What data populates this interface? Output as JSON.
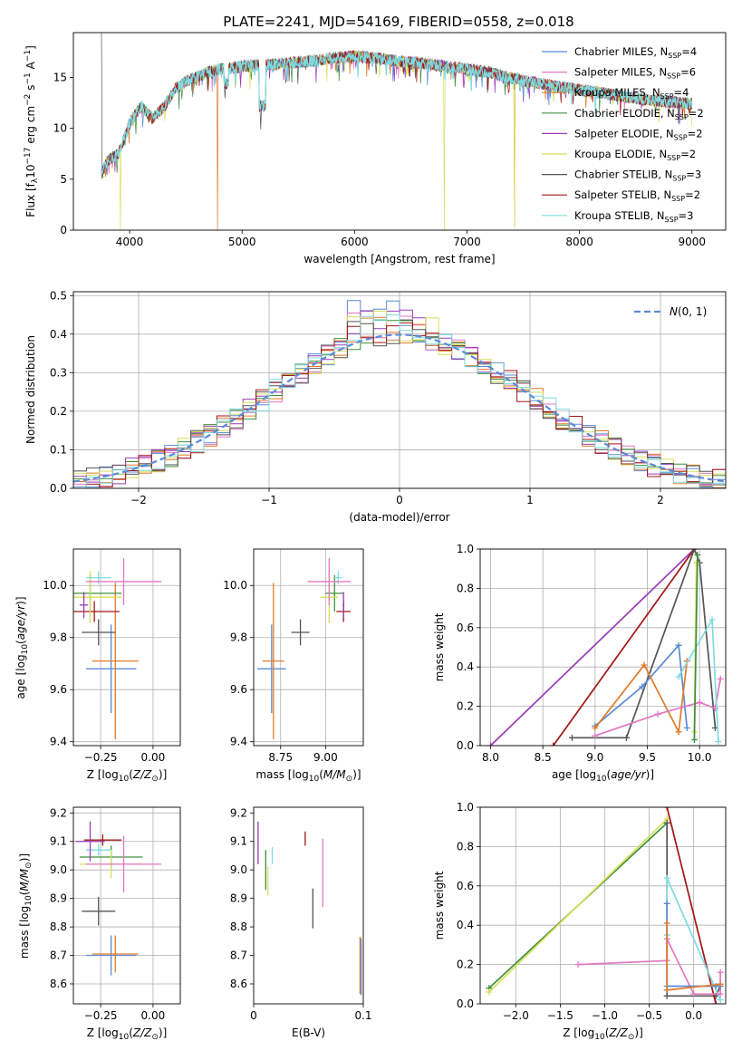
{
  "figure_title": "PLATE=2241, MJD=54169, FIBERID=0558, z=0.018",
  "colors": {
    "Chabrier MILES": "#5b8bd6",
    "Salpeter MILES": "#e377c2",
    "Kroupa MILES": "#e07b2a",
    "Chabrier ELODIE": "#3f8f3f",
    "Salpeter ELODIE": "#9a3bb5",
    "Kroupa ELODIE": "#d8df5a",
    "Chabrier STELIB": "#555555",
    "Salpeter STELIB": "#a31515",
    "Kroupa STELIB": "#7fdbe0"
  },
  "chart_data": [
    {
      "type": "line",
      "title": "PLATE=2241, MJD=54169, FIBERID=0558, z=0.018",
      "xlabel": "wavelength [Angstrom, rest frame]",
      "ylabel": "Flux [f",
      "xlim": [
        3500,
        9300
      ],
      "ylim": [
        0,
        19.4
      ],
      "xticks": [
        4000,
        5000,
        6000,
        7000,
        8000,
        9000
      ],
      "yticks": [
        0,
        5,
        10,
        15
      ],
      "grid": false,
      "legend_position": "top-right",
      "continuum": {
        "x": [
          3750,
          3800,
          3900,
          4000,
          4100,
          4200,
          4300,
          4400,
          4500,
          4600,
          4700,
          4800,
          5000,
          5200,
          5400,
          5600,
          5800,
          6000,
          6200,
          6400,
          6600,
          6800,
          7000,
          7200,
          7400,
          7600,
          7800,
          8000,
          8200,
          8400,
          8600,
          8800,
          9000
        ],
        "y": [
          5.5,
          6.8,
          7.5,
          10.5,
          12.2,
          11.0,
          12.0,
          13.8,
          14.6,
          15.1,
          15.5,
          15.8,
          16.1,
          16.2,
          16.4,
          16.6,
          16.9,
          17.1,
          16.9,
          16.6,
          16.4,
          16.1,
          15.8,
          15.5,
          14.9,
          14.5,
          14.1,
          13.8,
          13.5,
          13.1,
          12.8,
          12.6,
          12.4
        ]
      },
      "noise_amplitude": 0.6,
      "series": [
        {
          "name": "Chabrier MILES, N_SSP=4",
          "legend": "Chabrier MILES, N",
          "sub": "SSP",
          "n": "=4",
          "color": "#5b8bd6"
        },
        {
          "name": "Salpeter MILES, N_SSP=6",
          "legend": "Salpeter MILES, N",
          "sub": "SSP",
          "n": "=6",
          "color": "#e377c2"
        },
        {
          "name": "Kroupa MILES, N_SSP=4",
          "legend": "Kroupa MILES, N",
          "sub": "SSP",
          "n": "=4",
          "color": "#e07b2a",
          "dips": [
            [
              4780,
              0
            ],
            [
              7420,
              0.3
            ]
          ]
        },
        {
          "name": "Chabrier ELODIE, N_SSP=2",
          "legend": "Chabrier ELODIE, N",
          "sub": "SSP",
          "n": "=2",
          "color": "#3f8f3f"
        },
        {
          "name": "Salpeter ELODIE, N_SSP=2",
          "legend": "Salpeter ELODIE, N",
          "sub": "SSP",
          "n": "=2",
          "color": "#9a3bb5"
        },
        {
          "name": "Kroupa ELODIE, N_SSP=2",
          "legend": "Kroupa ELODIE, N",
          "sub": "SSP",
          "n": "=2",
          "color": "#d8df5a",
          "dips": [
            [
              3920,
              0
            ],
            [
              6800,
              0
            ],
            [
              7420,
              0.3
            ]
          ]
        },
        {
          "name": "Chabrier STELIB, N_SSP=3",
          "legend": "Chabrier STELIB, N",
          "sub": "SSP",
          "n": "=3",
          "color": "#555555",
          "spikes": [
            [
              3750,
              19.4
            ]
          ]
        },
        {
          "name": "Salpeter STELIB, N_SSP=2",
          "legend": "Salpeter STELIB, N",
          "sub": "SSP",
          "n": "=2",
          "color": "#a31515"
        },
        {
          "name": "Kroupa STELIB, N_SSP=3",
          "legend": "Kroupa STELIB, N",
          "sub": "SSP",
          "n": "=3",
          "color": "#7fdbe0"
        }
      ]
    },
    {
      "type": "line",
      "xlabel": "(data-model)/error",
      "ylabel": "Normed distribution",
      "xlim": [
        -2.5,
        2.5
      ],
      "ylim": [
        0,
        0.51
      ],
      "xticks": [
        -2,
        -1,
        0,
        1,
        2
      ],
      "yticks": [
        0.0,
        0.1,
        0.2,
        0.3,
        0.4,
        0.5
      ],
      "grid": true,
      "legend_position": "top-right",
      "reference_curve": {
        "name": "N(0, 1)",
        "color": "#5b8bd6"
      },
      "histogram_bin_width": 0.1,
      "histogram_scatter": 0.03,
      "histogram_peaks": [
        0.49,
        0.46,
        0.45,
        0.44,
        0.47,
        0.46,
        0.45,
        0.44,
        0.46
      ]
    },
    {
      "type": "scatter",
      "xlabel": "Z [log",
      "ylabel": "age  [log",
      "xlim": [
        -0.38,
        0.13
      ],
      "ylim": [
        9.385,
        10.14
      ],
      "xticks": [
        -0.25,
        0.0
      ],
      "yticks": [
        9.4,
        9.6,
        9.8,
        10.0
      ],
      "grid": true,
      "points": [
        {
          "series": "Chabrier MILES",
          "x": -0.2,
          "y": 9.68,
          "xerr": 0.12,
          "yerr": 0.17
        },
        {
          "series": "Kroupa MILES",
          "x": -0.18,
          "y": 9.71,
          "xerr": 0.11,
          "yerr": 0.3
        },
        {
          "series": "Chabrier STELIB",
          "x": -0.26,
          "y": 9.82,
          "xerr": 0.08,
          "yerr": 0.05
        },
        {
          "series": "Salpeter STELIB",
          "x": -0.28,
          "y": 9.9,
          "xerr": 0.12,
          "yerr": 0.04
        },
        {
          "series": "Chabrier ELODIE",
          "x": -0.3,
          "y": 9.97,
          "xerr": 0.15,
          "yerr": 0.07
        },
        {
          "series": "Kroupa ELODIE",
          "x": -0.3,
          "y": 9.955,
          "xerr": 0.15,
          "yerr": 0.1
        },
        {
          "series": "Kroupa STELIB",
          "x": -0.26,
          "y": 10.03,
          "xerr": 0.06,
          "yerr": 0.025
        },
        {
          "series": "Salpeter MILES",
          "x": -0.14,
          "y": 10.015,
          "xerr": 0.18,
          "yerr": 0.09
        },
        {
          "series": "Salpeter ELODIE",
          "x": -0.33,
          "y": 9.925,
          "xerr": 0.02,
          "yerr": 0.05
        }
      ]
    },
    {
      "type": "scatter",
      "xlabel": "mass [log",
      "ylabel": "",
      "xlim": [
        8.6,
        9.21
      ],
      "ylim": [
        9.385,
        10.14
      ],
      "xticks": [
        8.75,
        9.0
      ],
      "yticks": [
        9.4,
        9.6,
        9.8,
        10.0
      ],
      "grid": true,
      "points": [
        {
          "series": "Chabrier MILES",
          "x": 8.7,
          "y": 9.68,
          "xerr": 0.08,
          "yerr": 0.17
        },
        {
          "series": "Kroupa MILES",
          "x": 8.71,
          "y": 9.71,
          "xerr": 0.06,
          "yerr": 0.3
        },
        {
          "series": "Chabrier STELIB",
          "x": 8.86,
          "y": 9.82,
          "xerr": 0.05,
          "yerr": 0.05
        },
        {
          "series": "Salpeter STELIB",
          "x": 9.1,
          "y": 9.9,
          "xerr": 0.04,
          "yerr": 0.04
        },
        {
          "series": "Chabrier ELODIE",
          "x": 9.05,
          "y": 9.97,
          "xerr": 0.05,
          "yerr": 0.07
        },
        {
          "series": "Kroupa ELODIE",
          "x": 9.02,
          "y": 9.955,
          "xerr": 0.05,
          "yerr": 0.1
        },
        {
          "series": "Kroupa STELIB",
          "x": 9.07,
          "y": 10.03,
          "xerr": 0.02,
          "yerr": 0.025
        },
        {
          "series": "Salpeter MILES",
          "x": 9.02,
          "y": 10.015,
          "xerr": 0.12,
          "yerr": 0.09
        },
        {
          "series": "Salpeter ELODIE",
          "x": 9.1,
          "y": 9.925,
          "xerr": 0.005,
          "yerr": 0.05
        }
      ]
    },
    {
      "type": "line",
      "xlabel": "age  [log",
      "ylabel": "mass weight",
      "xlim": [
        7.9,
        10.25
      ],
      "ylim": [
        0,
        1.0
      ],
      "xticks": [
        8.0,
        8.5,
        9.0,
        9.5,
        10.0
      ],
      "yticks": [
        0.0,
        0.2,
        0.4,
        0.6,
        0.8,
        1.0
      ],
      "grid": true,
      "series": [
        {
          "name": "Salpeter ELODIE",
          "x": [
            8.0,
            9.95
          ],
          "y": [
            0.0,
            1.0
          ]
        },
        {
          "name": "Salpeter STELIB",
          "x": [
            8.6,
            9.95
          ],
          "y": [
            0.0,
            1.0
          ]
        },
        {
          "name": "Chabrier STELIB",
          "x": [
            8.78,
            9.3,
            9.95,
            10.0,
            10.15
          ],
          "y": [
            0.04,
            0.04,
            1.0,
            0.93,
            0.09
          ]
        },
        {
          "name": "Chabrier MILES",
          "x": [
            9.0,
            9.45,
            9.8,
            9.88
          ],
          "y": [
            0.1,
            0.3,
            0.51,
            0.09
          ]
        },
        {
          "name": "Kroupa MILES",
          "x": [
            9.0,
            9.47,
            9.8,
            9.88
          ],
          "y": [
            0.09,
            0.41,
            0.07,
            0.43
          ]
        },
        {
          "name": "Salpeter MILES",
          "x": [
            9.0,
            9.6,
            10.0,
            10.15,
            10.2
          ],
          "y": [
            0.05,
            0.16,
            0.22,
            0.19,
            0.34
          ]
        },
        {
          "name": "Kroupa STELIB",
          "x": [
            9.8,
            10.12,
            10.18
          ],
          "y": [
            0.35,
            0.64,
            0.02
          ]
        },
        {
          "name": "Kroupa ELODIE",
          "x": [
            9.95,
            9.97
          ],
          "y": [
            0.07,
            0.93
          ]
        },
        {
          "name": "Chabrier ELODIE",
          "x": [
            9.95,
            9.98
          ],
          "y": [
            0.03,
            0.97
          ]
        }
      ]
    },
    {
      "type": "scatter",
      "xlabel": "Z [log",
      "ylabel": "mass [log",
      "xlim": [
        -0.38,
        0.13
      ],
      "ylim": [
        8.53,
        9.22
      ],
      "xticks": [
        -0.25,
        0.0
      ],
      "yticks": [
        8.6,
        8.7,
        8.8,
        8.9,
        9.0,
        9.1,
        9.2
      ],
      "grid": true,
      "points": [
        {
          "series": "Chabrier MILES",
          "x": -0.2,
          "y": 8.7,
          "xerr": 0.12,
          "yerr": 0.07
        },
        {
          "series": "Kroupa MILES",
          "x": -0.18,
          "y": 8.705,
          "xerr": 0.11,
          "yerr": 0.065
        },
        {
          "series": "Chabrier STELIB",
          "x": -0.26,
          "y": 8.855,
          "xerr": 0.08,
          "yerr": 0.05
        },
        {
          "series": "Salpeter STELIB",
          "x": -0.24,
          "y": 9.105,
          "xerr": 0.09,
          "yerr": 0.02
        },
        {
          "series": "Chabrier ELODIE",
          "x": -0.2,
          "y": 9.045,
          "xerr": 0.15,
          "yerr": 0.04
        },
        {
          "series": "Kroupa ELODIE",
          "x": -0.2,
          "y": 9.02,
          "xerr": 0.15,
          "yerr": 0.05
        },
        {
          "series": "Kroupa STELIB",
          "x": -0.26,
          "y": 9.07,
          "xerr": 0.06,
          "yerr": 0.02
        },
        {
          "series": "Salpeter MILES",
          "x": -0.14,
          "y": 9.02,
          "xerr": 0.18,
          "yerr": 0.1
        },
        {
          "series": "Salpeter ELODIE",
          "x": -0.3,
          "y": 9.1,
          "xerr": 0.07,
          "yerr": 0.07
        }
      ]
    },
    {
      "type": "scatter",
      "xlabel": "E(B-V)",
      "ylabel": "",
      "xlim": [
        0,
        0.1
      ],
      "ylim": [
        8.53,
        9.22
      ],
      "xticks": [
        0.0,
        0.1
      ],
      "yticks": [
        8.6,
        8.7,
        8.8,
        8.9,
        9.0,
        9.1,
        9.2
      ],
      "grid": false,
      "points": [
        {
          "series": "Salpeter ELODIE",
          "x": 0.004,
          "y": 9.095,
          "yerr": 0.075
        },
        {
          "series": "Chabrier ELODIE",
          "x": 0.011,
          "y": 9.0,
          "yerr": 0.07
        },
        {
          "series": "Kroupa ELODIE",
          "x": 0.013,
          "y": 8.96,
          "yerr": 0.05
        },
        {
          "series": "Kroupa STELIB",
          "x": 0.017,
          "y": 9.05,
          "yerr": 0.03
        },
        {
          "series": "Salpeter STELIB",
          "x": 0.047,
          "y": 9.11,
          "yerr": 0.025
        },
        {
          "series": "Chabrier STELIB",
          "x": 0.054,
          "y": 8.865,
          "yerr": 0.07
        },
        {
          "series": "Salpeter MILES",
          "x": 0.063,
          "y": 8.99,
          "yerr": 0.12
        },
        {
          "series": "Kroupa MILES",
          "x": 0.097,
          "y": 8.665,
          "yerr": 0.1
        },
        {
          "series": "Chabrier MILES",
          "x": 0.098,
          "y": 8.66,
          "yerr": 0.1
        }
      ]
    },
    {
      "type": "line",
      "xlabel": "Z [log",
      "ylabel": "mass weight",
      "xlim": [
        -2.4,
        0.36
      ],
      "ylim": [
        0,
        1.0
      ],
      "xticks": [
        -2.0,
        -1.5,
        -1.0,
        -0.5,
        0.0
      ],
      "yticks": [
        0.0,
        0.2,
        0.4,
        0.6,
        0.8,
        1.0
      ],
      "grid": true,
      "series": [
        {
          "name": "Chabrier ELODIE",
          "x": [
            -2.3,
            -0.3
          ],
          "y": [
            0.08,
            0.92
          ]
        },
        {
          "name": "Kroupa ELODIE",
          "x": [
            -2.3,
            -0.3
          ],
          "y": [
            0.06,
            0.94
          ]
        },
        {
          "name": "Chabrier STELIB",
          "x": [
            -0.3,
            -0.3,
            0.25,
            0.3
          ],
          "y": [
            0.92,
            0.04,
            0.04,
            0.09
          ]
        },
        {
          "name": "Salpeter STELIB",
          "x": [
            -0.3,
            0.25
          ],
          "y": [
            1.0,
            0.0
          ]
        },
        {
          "name": "Kroupa STELIB",
          "x": [
            -0.3,
            -0.3,
            0.3
          ],
          "y": [
            0.35,
            0.64,
            0.02
          ]
        },
        {
          "name": "Salpeter MILES",
          "x": [
            -1.3,
            -0.3,
            -0.3,
            0.0,
            0.3,
            0.3
          ],
          "y": [
            0.2,
            0.22,
            0.33,
            0.05,
            0.05,
            0.16
          ]
        },
        {
          "name": "Chabrier MILES",
          "x": [
            -0.3,
            -0.3,
            0.25,
            0.3
          ],
          "y": [
            0.51,
            0.09,
            0.09,
            0.09
          ]
        },
        {
          "name": "Kroupa MILES",
          "x": [
            -0.3,
            -0.3,
            0.3
          ],
          "y": [
            0.41,
            0.07,
            0.1
          ]
        }
      ]
    }
  ]
}
